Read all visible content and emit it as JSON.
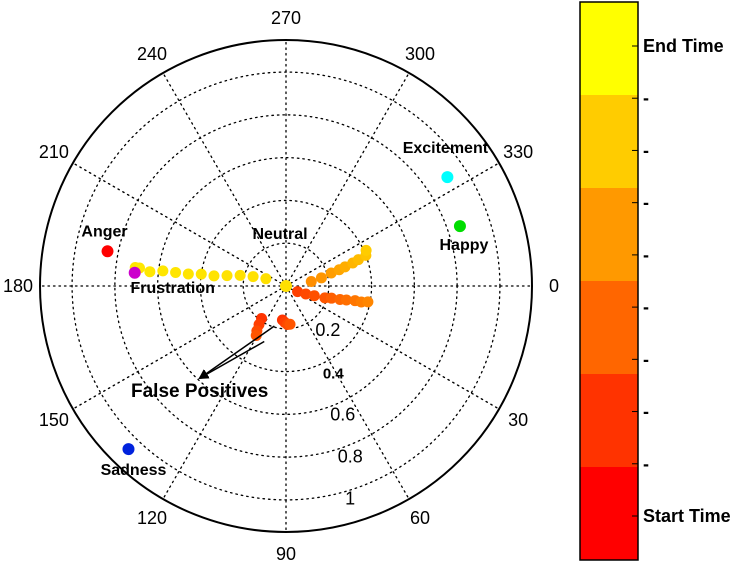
{
  "chart_data": {
    "type": "polar-scatter",
    "rlim": [
      0,
      1.15
    ],
    "radial_ticks": [
      {
        "r": 0.2,
        "label": "0.2"
      },
      {
        "r": 0.4,
        "label": "0.4"
      },
      {
        "r": 0.6,
        "label": "0.6"
      },
      {
        "r": 0.8,
        "label": "0.8"
      },
      {
        "r": 1.0,
        "label": "1"
      }
    ],
    "angle_ticks": [
      {
        "angle": 0,
        "label": "0"
      },
      {
        "angle": 30,
        "label": "30"
      },
      {
        "angle": 60,
        "label": "60"
      },
      {
        "angle": 90,
        "label": "90"
      },
      {
        "angle": 120,
        "label": "120"
      },
      {
        "angle": 150,
        "label": "150"
      },
      {
        "angle": 180,
        "label": "180"
      },
      {
        "angle": 210,
        "label": "210"
      },
      {
        "angle": 240,
        "label": "240"
      },
      {
        "angle": 270,
        "label": "270"
      },
      {
        "angle": 300,
        "label": "300"
      },
      {
        "angle": 330,
        "label": "330"
      }
    ],
    "grid": true,
    "emotions": [
      {
        "name": "Excitement",
        "angle": 326,
        "r": 0.91,
        "color": "#00ffff",
        "label": "Excitement"
      },
      {
        "name": "Happy",
        "angle": 341,
        "r": 0.86,
        "color": "#00dd00",
        "label": "Happy"
      },
      {
        "name": "Anger",
        "angle": 191,
        "r": 0.85,
        "color": "#ff0000",
        "label": "Anger"
      },
      {
        "name": "Frustration",
        "angle": 185,
        "r": 0.71,
        "color": "#cc00cc",
        "label": "Frustration"
      },
      {
        "name": "Sadness",
        "angle": 134,
        "r": 1.06,
        "color": "#0022dd",
        "label": "Sadness"
      },
      {
        "name": "Neutral",
        "angle": 0,
        "r": 0.0,
        "color": "#ffe000",
        "label": "Neutral"
      }
    ],
    "trajectories": [
      {
        "name": "rightward",
        "color_start": "#ff4000",
        "color_end": "#ffcc00",
        "points": [
          [
            26,
            0.06
          ],
          [
            22,
            0.1
          ],
          [
            19,
            0.14
          ],
          [
            17,
            0.19
          ],
          [
            15,
            0.22
          ],
          [
            14,
            0.26
          ],
          [
            13,
            0.29
          ],
          [
            12,
            0.33
          ],
          [
            12,
            0.36
          ],
          [
            11,
            0.39
          ],
          [
            350,
            0.12
          ],
          [
            347,
            0.17
          ],
          [
            344,
            0.22
          ],
          [
            343,
            0.26
          ],
          [
            342,
            0.29
          ],
          [
            341,
            0.33
          ],
          [
            340,
            0.36
          ],
          [
            339,
            0.4
          ],
          [
            336,
            0.41
          ]
        ]
      },
      {
        "name": "leftward",
        "color_start": "#ffe000",
        "color_end": "#ffe800",
        "points": [
          [
            200,
            0.1
          ],
          [
            196,
            0.16
          ],
          [
            193,
            0.22
          ],
          [
            190,
            0.28
          ],
          [
            188,
            0.34
          ],
          [
            188,
            0.4
          ],
          [
            187,
            0.46
          ],
          [
            187,
            0.52
          ],
          [
            187,
            0.58
          ],
          [
            186,
            0.64
          ],
          [
            187,
            0.69
          ],
          [
            187,
            0.71
          ]
        ]
      },
      {
        "name": "false-pos-a",
        "color_start": "#ff3300",
        "color_end": "#ff5500",
        "points": [
          [
            127,
            0.19
          ],
          [
            125,
            0.22
          ],
          [
            123,
            0.25
          ],
          [
            121,
            0.27
          ]
        ]
      },
      {
        "name": "false-pos-b",
        "color_start": "#ff3300",
        "color_end": "#ff5500",
        "points": [
          [
            96,
            0.16
          ],
          [
            92,
            0.17
          ],
          [
            88,
            0.18
          ],
          [
            84,
            0.18
          ]
        ]
      }
    ],
    "annotations": [
      {
        "text": "False Positives"
      },
      {
        "text": "Neutral"
      }
    ],
    "colorbar": {
      "colors": [
        "#ff0000",
        "#ff3300",
        "#ff6600",
        "#ff9900",
        "#ffcc00",
        "#ffff00"
      ],
      "tick_labels": [
        "Start Time",
        "-",
        "-",
        "-",
        "-",
        "-",
        "-",
        "-",
        "-",
        "End Time"
      ]
    }
  }
}
